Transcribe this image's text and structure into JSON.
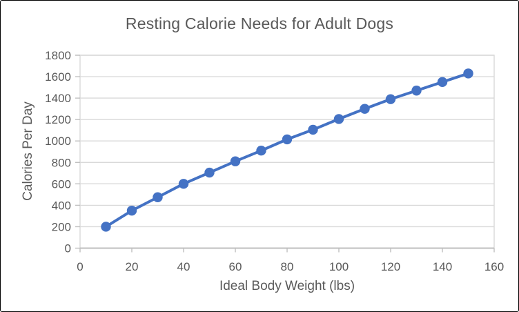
{
  "chart_data": {
    "type": "line",
    "title": "Resting Calorie Needs for Adult Dogs",
    "xlabel": "Ideal Body Weight (lbs)",
    "ylabel": "Calories Per Day",
    "x": [
      10,
      20,
      30,
      40,
      50,
      60,
      70,
      80,
      90,
      100,
      110,
      120,
      130,
      140,
      150
    ],
    "y": [
      200,
      350,
      475,
      600,
      705,
      810,
      910,
      1015,
      1105,
      1205,
      1300,
      1390,
      1470,
      1550,
      1630
    ],
    "xlim": [
      0,
      160
    ],
    "ylim": [
      0,
      1800
    ],
    "x_ticks": [
      0,
      20,
      40,
      60,
      80,
      100,
      120,
      140,
      160
    ],
    "y_ticks": [
      0,
      200,
      400,
      600,
      800,
      1000,
      1200,
      1400,
      1600,
      1800
    ],
    "grid": "horizontal",
    "legend": "none",
    "marker": "circle",
    "line_with_markers": true
  },
  "style": {
    "series_color": "#4472C4",
    "grid_color": "#D9D9D9",
    "plot_border_color": "#D9D9D9",
    "axis_line_color": "#BFBFBF",
    "tick_color": "#BFBFBF",
    "text_color": "#595959",
    "background_color": "#FFFFFF",
    "frame_border_color": "#000000"
  }
}
